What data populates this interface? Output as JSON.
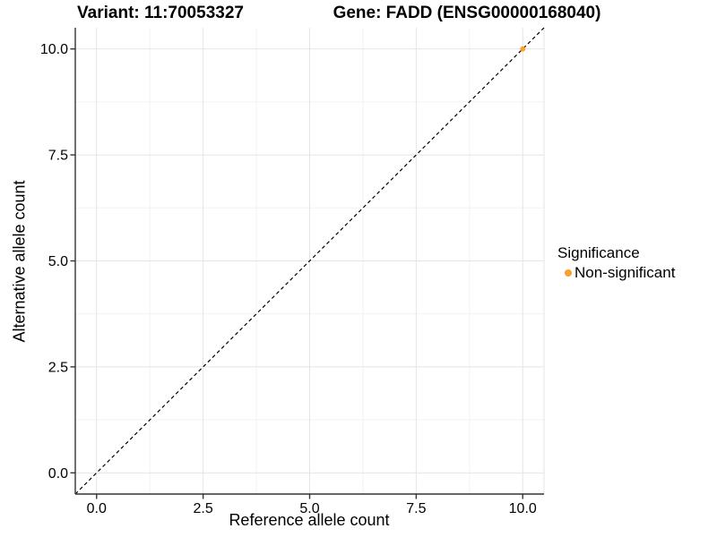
{
  "chart_data": {
    "type": "scatter",
    "title_left": "Variant: 11:70053327",
    "title_right": "Gene: FADD (ENSG00000168040)",
    "xlabel": "Reference allele count",
    "ylabel": "Alternative allele count",
    "xlim": [
      0,
      10
    ],
    "ylim": [
      0,
      10
    ],
    "x_ticks": [
      0,
      2.5,
      5,
      7.5,
      10
    ],
    "x_tick_labels": [
      "0.0",
      "2.5",
      "5.0",
      "7.5",
      "10.0"
    ],
    "y_ticks": [
      0,
      2.5,
      5,
      7.5,
      10
    ],
    "y_tick_labels": [
      "0.0",
      "2.5",
      "5.0",
      "7.5",
      "10.0"
    ],
    "grid": "major+minor",
    "legend": {
      "title": "Significance",
      "position": "right",
      "entries": [
        {
          "label": "Non-significant",
          "color": "#F9A02B",
          "marker": "circle"
        }
      ]
    },
    "series": [
      {
        "name": "Non-significant",
        "color": "#F9A02B",
        "points": [
          {
            "x": 10,
            "y": 10
          }
        ]
      }
    ],
    "annotations": [
      {
        "type": "abline",
        "slope": 1,
        "intercept": 0,
        "linestyle": "dashed",
        "color": "#000000"
      }
    ],
    "colors": {
      "point": "#F9A02B",
      "grid_major": "#E4E4E4",
      "grid_minor": "#F2F2F2",
      "axis": "#333333",
      "text": "#000000"
    }
  }
}
